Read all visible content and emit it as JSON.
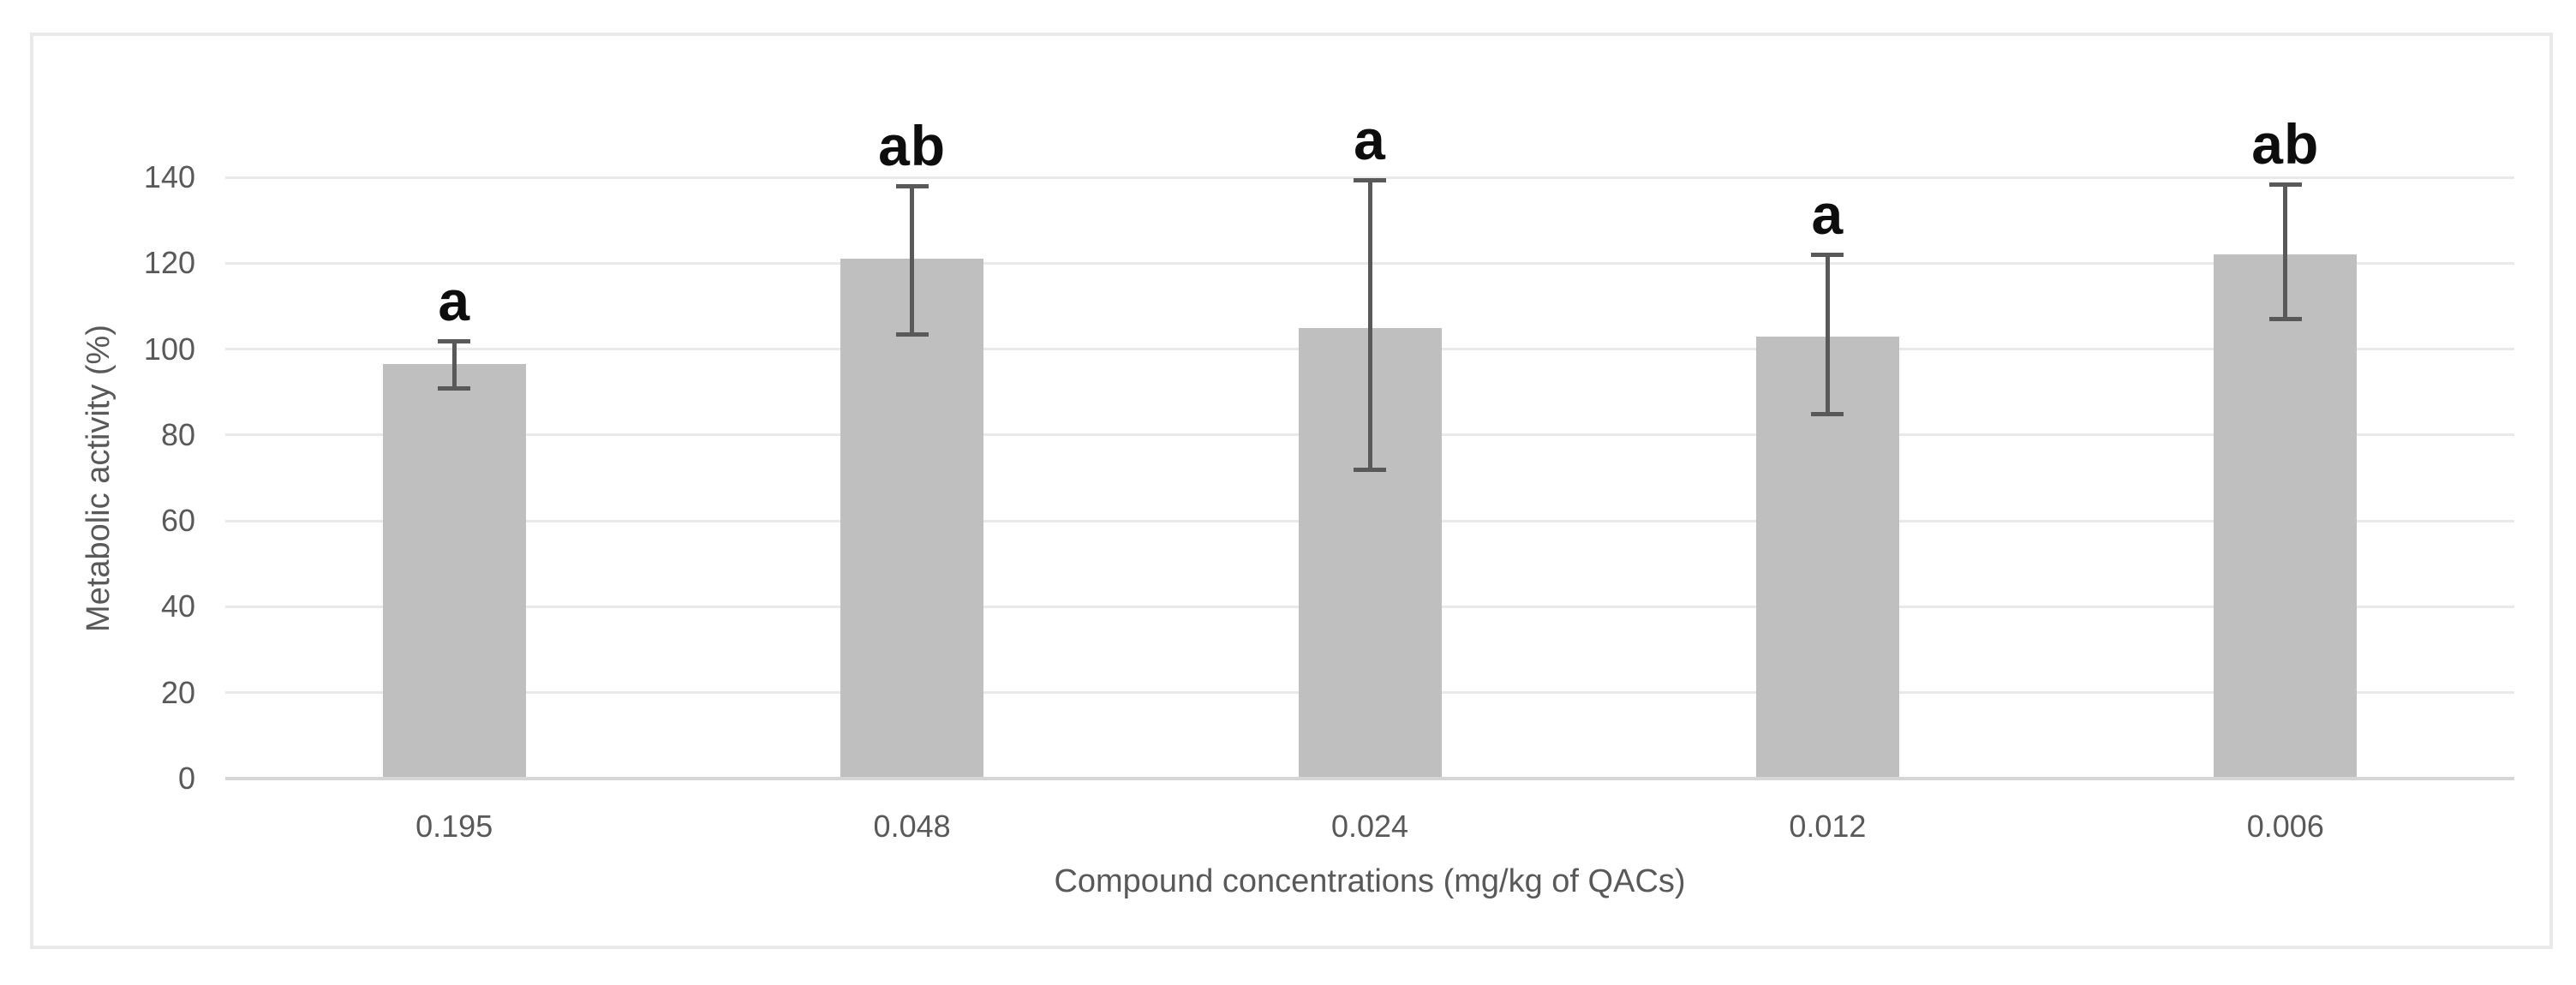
{
  "chart_data": {
    "type": "bar",
    "title": "",
    "xlabel": "Compound concentrations (mg/kg of QACs)",
    "ylabel": "Metabolic activity (%)",
    "categories": [
      "0.195",
      "0.048",
      "0.024",
      "0.012",
      "0.006"
    ],
    "values": [
      96.5,
      121,
      105,
      103,
      122
    ],
    "error_bars": {
      "upper": [
        102,
        138,
        139.5,
        122,
        138.5
      ],
      "lower": [
        91,
        103.5,
        72,
        85,
        107
      ]
    },
    "significance_labels": [
      "a",
      "ab",
      "a",
      "a",
      "ab"
    ],
    "yticks": [
      0,
      20,
      40,
      60,
      80,
      100,
      120,
      140
    ],
    "ylim": [
      0,
      140
    ],
    "grid": true,
    "legend": "none",
    "colors": {
      "bar_fill": "#bfbfbf",
      "gridline": "#e9e9e9",
      "axis_line": "#d6d6d6",
      "error_bar": "#595959",
      "tick_text": "#595959",
      "axis_title_text": "#595959",
      "significance_text": "#0d0d0d",
      "frame_border": "#e9e9e9",
      "background": "#ffffff"
    }
  }
}
